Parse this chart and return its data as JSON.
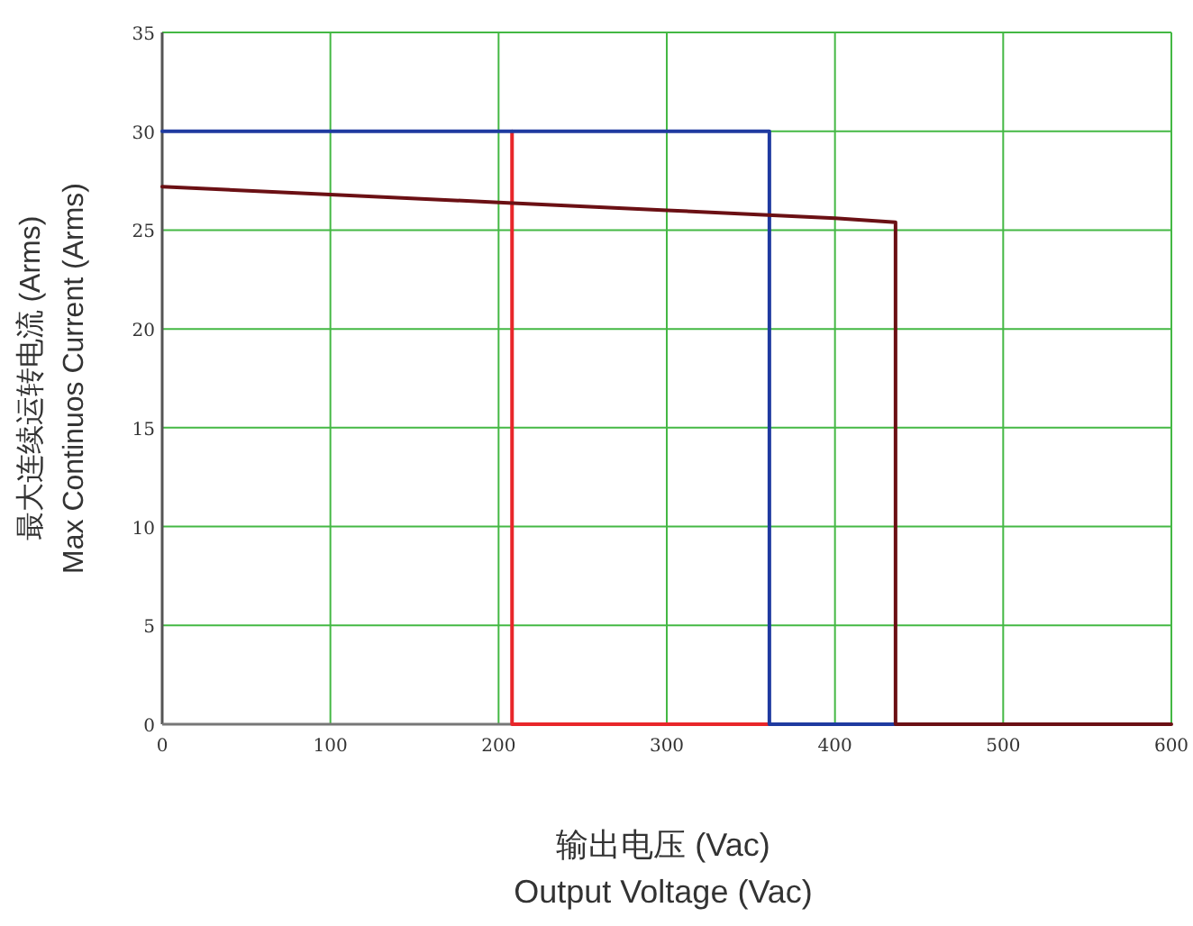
{
  "chart_data": {
    "type": "line",
    "xlabel": "输出电压 (Vac)\nOutput Voltage (Vac)",
    "ylabel": "最大连续运转电流 (Arms)\nMax Continuos Current (Arms)",
    "xlim": [
      0,
      600
    ],
    "ylim": [
      0,
      35
    ],
    "xticks": [
      0,
      100,
      200,
      300,
      400,
      500,
      600
    ],
    "yticks": [
      0,
      5,
      10,
      15,
      20,
      25,
      30,
      35
    ],
    "grid": true,
    "series": [
      {
        "color": "#e8262a",
        "x": [
          208,
          208,
          361
        ],
        "values": [
          30,
          0,
          0
        ]
      },
      {
        "color": "#1f3aa0",
        "x": [
          0,
          361,
          361,
          436
        ],
        "values": [
          30,
          30,
          0,
          0
        ]
      },
      {
        "color": "#6b1014",
        "x": [
          0,
          100,
          200,
          300,
          400,
          436,
          436,
          600
        ],
        "values": [
          27.2,
          26.8,
          26.4,
          26.0,
          25.6,
          25.4,
          0,
          0
        ]
      }
    ]
  }
}
